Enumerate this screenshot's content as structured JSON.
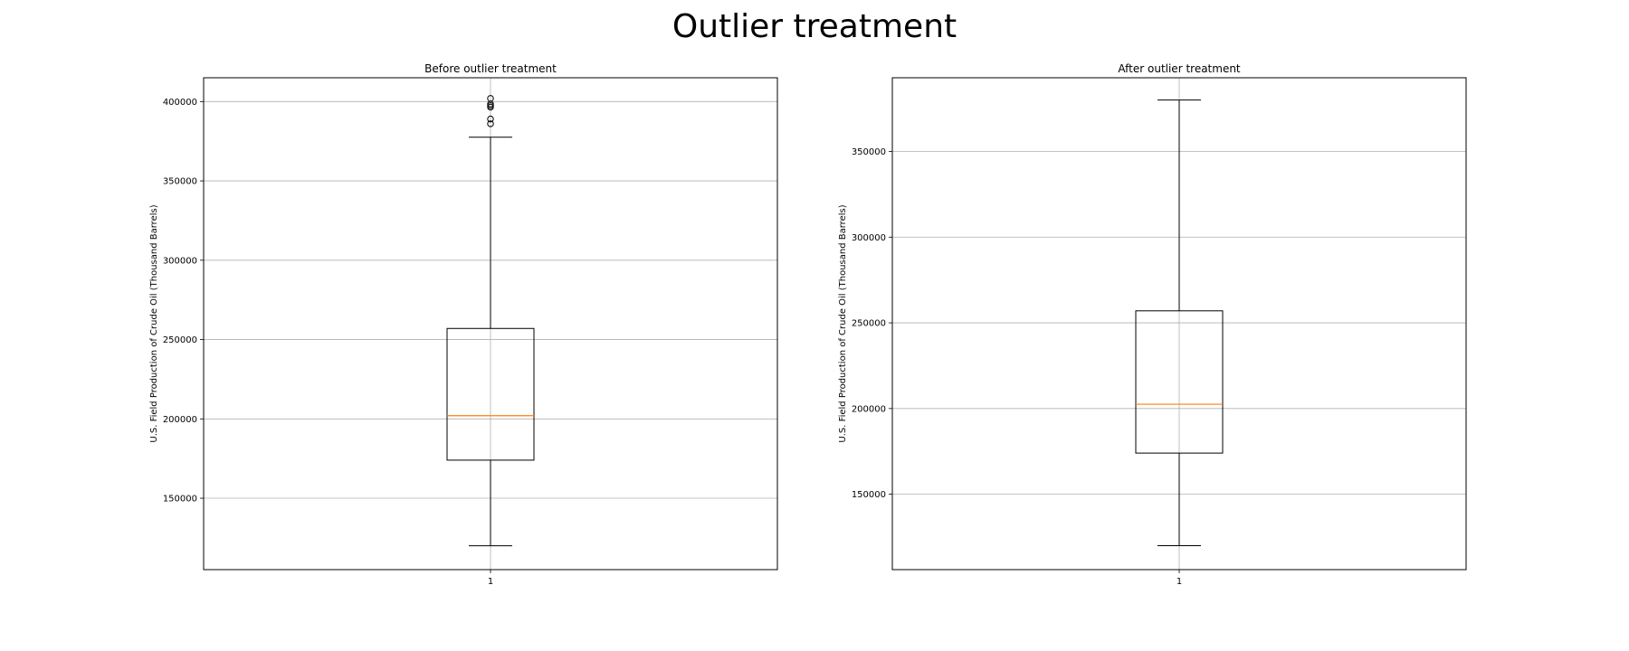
{
  "figure": {
    "title": "Outlier treatment"
  },
  "chart_data": [
    {
      "type": "box",
      "title": "Before outlier treatment",
      "xlabel": "",
      "ylabel": "U.S. Field Production of Crude Oil (Thousand Barrels)",
      "categories": [
        "1"
      ],
      "ylim": [
        105000,
        415000
      ],
      "yticks": [
        150000,
        200000,
        250000,
        300000,
        350000,
        400000
      ],
      "grid": true,
      "box": {
        "whisker_low": 120000,
        "q1": 174000,
        "median": 202000,
        "q3": 257000,
        "whisker_high": 377500,
        "outliers": [
          386000,
          389000,
          396500,
          397500,
          398500,
          402000
        ]
      }
    },
    {
      "type": "box",
      "title": "After outlier treatment",
      "xlabel": "",
      "ylabel": "U.S. Field Production of Crude Oil (Thousand Barrels)",
      "categories": [
        "1"
      ],
      "ylim": [
        106000,
        393000
      ],
      "yticks": [
        150000,
        200000,
        250000,
        300000,
        350000
      ],
      "grid": true,
      "box": {
        "whisker_low": 120000,
        "q1": 174000,
        "median": 202500,
        "q3": 257000,
        "whisker_high": 380000,
        "outliers": []
      }
    }
  ]
}
